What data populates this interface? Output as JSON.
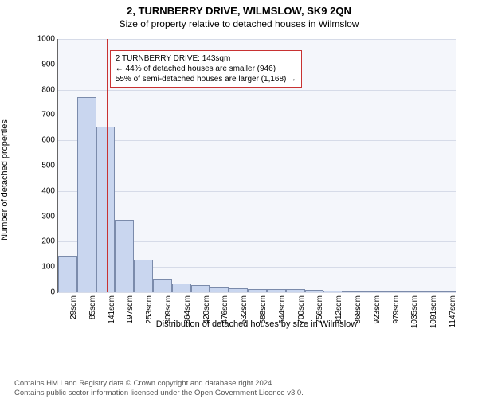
{
  "title_main": "2, TURNBERRY DRIVE, WILMSLOW, SK9 2QN",
  "title_sub": "Size of property relative to detached houses in Wilmslow",
  "chart": {
    "type": "histogram",
    "ylabel": "Number of detached properties",
    "xlabel": "Distribution of detached houses by size in Wilmslow",
    "ylim": [
      0,
      1000
    ],
    "ytick_step": 100,
    "background_color": "#f4f6fb",
    "grid_color": "#d6dbe8",
    "bar_fill": "#c9d6ef",
    "bar_stroke": "#7b8bab",
    "marker_color": "#c83232",
    "marker_sqm": 143,
    "bin_start": 0,
    "bin_width": 56,
    "n_bins": 21,
    "xtick_labels": [
      "29sqm",
      "85sqm",
      "141sqm",
      "197sqm",
      "253sqm",
      "309sqm",
      "364sqm",
      "420sqm",
      "476sqm",
      "532sqm",
      "588sqm",
      "644sqm",
      "700sqm",
      "756sqm",
      "812sqm",
      "868sqm",
      "923sqm",
      "979sqm",
      "1035sqm",
      "1091sqm",
      "1147sqm"
    ],
    "values": [
      140,
      770,
      655,
      285,
      130,
      55,
      35,
      28,
      22,
      16,
      14,
      12,
      12,
      10,
      6,
      3,
      1,
      1,
      0,
      0,
      0
    ],
    "callout": {
      "line1": "2 TURNBERRY DRIVE: 143sqm",
      "line2": "← 44% of detached houses are smaller (946)",
      "line3": "55% of semi-detached houses are larger (1,168) →"
    },
    "title_fontsize": 13,
    "label_fontsize": 11,
    "tick_fontsize": 10
  },
  "footer": {
    "line1": "Contains HM Land Registry data © Crown copyright and database right 2024.",
    "line2": "Contains public sector information licensed under the Open Government Licence v3.0."
  }
}
